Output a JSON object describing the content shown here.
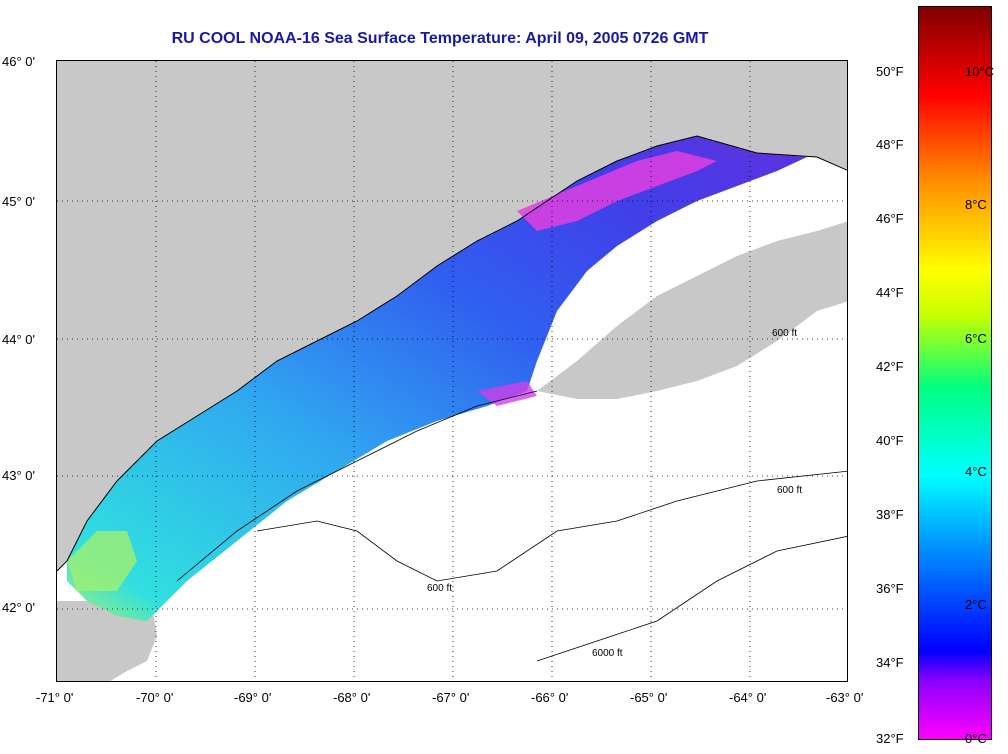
{
  "title": "RU COOL  NOAA-16  Sea Surface Temperature:  April 09, 2005 0726 GMT",
  "map": {
    "latitude_labels": [
      "46° 0'",
      "45° 0'",
      "44° 0'",
      "43° 0'",
      "42° 0'"
    ],
    "longitude_labels": [
      "-71° 0'",
      "-70° 0'",
      "-69° 0'",
      "-68° 0'",
      "-67° 0'",
      "-66° 0'",
      "-65° 0'",
      "-64° 0'",
      "-63° 0'"
    ],
    "lat_range": [
      41.5,
      46.0
    ],
    "lon_range": [
      -71.0,
      -63.0
    ],
    "contour_label": "600 ft",
    "contour_label_deep": "6000 ft",
    "grid": "dotted",
    "colors": {
      "land": "#c8c8c8",
      "no_data": "#ffffff",
      "contour": "#000000"
    }
  },
  "colorbar": {
    "fahrenheit_labels": [
      "50°F",
      "48°F",
      "46°F",
      "44°F",
      "42°F",
      "40°F",
      "38°F",
      "36°F",
      "34°F",
      "32°F"
    ],
    "celsius_labels": [
      "10°C",
      "8°C",
      "6°C",
      "4°C",
      "2°C",
      "0°C"
    ],
    "range_celsius": [
      0,
      11
    ],
    "colors": [
      "#ff00ff",
      "#8a00ff",
      "#0000ff",
      "#0090ff",
      "#00ffff",
      "#00ff80",
      "#c8ff00",
      "#ffff00",
      "#ff9000",
      "#ff0000",
      "#b00000",
      "#800000"
    ]
  }
}
